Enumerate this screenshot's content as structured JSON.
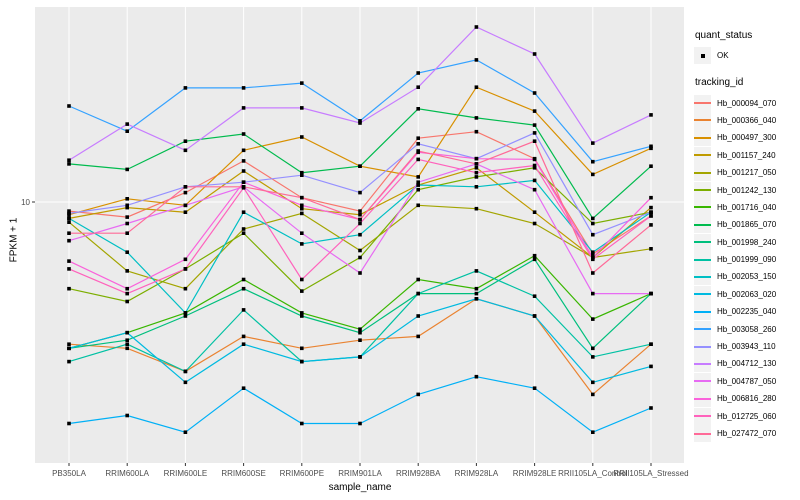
{
  "chart_data": {
    "type": "line",
    "title": "",
    "xlabel": "sample_name",
    "ylabel": "FPKM + 1",
    "y_scale": "log10",
    "panel_bg": "#EBEBEB",
    "grid_color": "#FFFFFF",
    "axis_text_color": "#4D4D4D",
    "marker": {
      "shape": "square",
      "color": "#000000"
    },
    "y_ticks": [
      {
        "label": "10",
        "value": 10
      }
    ],
    "categories": [
      "PB350LA",
      "RRIM600LA",
      "RRIM600LE",
      "RRIM600SE",
      "RRIM600PE",
      "RRIM901LA",
      "RRIM928BA",
      "RRIM928LA",
      "RRIM928LE",
      "RRII105LA_Control",
      "RRII105LA_Stressed"
    ],
    "legend": {
      "quant_status_title": "quant_status",
      "quant_status_items": [
        {
          "label": "OK"
        }
      ],
      "tracking_id_title": "tracking_id"
    },
    "series": [
      {
        "name": "Hb_000094_070",
        "color": "#F8766D",
        "values": [
          9.2,
          8.7,
          10.9,
          14.6,
          10.4,
          9.2,
          18.0,
          19.1,
          14.9,
          6.2,
          8.8
        ]
      },
      {
        "name": "Hb_000366_040",
        "color": "#EA8331",
        "values": [
          2.7,
          2.6,
          2.1,
          2.9,
          2.6,
          2.8,
          2.9,
          4.1,
          3.5,
          1.7,
          2.7
        ]
      },
      {
        "name": "Hb_000497_300",
        "color": "#D89000",
        "values": [
          8.9,
          10.3,
          9.7,
          16.1,
          18.2,
          13.9,
          12.6,
          28.8,
          23.1,
          12.9,
          16.4
        ]
      },
      {
        "name": "Hb_001157_240",
        "color": "#C09B00",
        "values": [
          8.6,
          9.5,
          9.1,
          13.3,
          9.4,
          8.9,
          11.7,
          13.7,
          9.1,
          6.0,
          9.5
        ]
      },
      {
        "name": "Hb_001217_050",
        "color": "#A3A500",
        "values": [
          8.3,
          5.3,
          4.5,
          7.8,
          9.0,
          6.4,
          9.7,
          9.4,
          8.2,
          6.0,
          6.5
        ]
      },
      {
        "name": "Hb_001242_130",
        "color": "#7CAE00",
        "values": [
          4.5,
          4.0,
          5.4,
          7.5,
          4.4,
          6.0,
          11.2,
          12.6,
          13.7,
          8.2,
          9.1
        ]
      },
      {
        "name": "Hb_001716_040",
        "color": "#39B600",
        "values": [
          2.6,
          3.0,
          3.6,
          4.9,
          3.6,
          3.1,
          4.9,
          4.5,
          6.1,
          3.4,
          4.3
        ]
      },
      {
        "name": "Hb_001865_070",
        "color": "#00BB4E",
        "values": [
          14.2,
          13.5,
          17.5,
          18.7,
          13.1,
          13.9,
          23.6,
          21.7,
          20.3,
          8.6,
          13.9
        ]
      },
      {
        "name": "Hb_001998_240",
        "color": "#00BF7D",
        "values": [
          2.6,
          2.8,
          3.5,
          4.5,
          3.5,
          3.0,
          4.3,
          4.3,
          5.9,
          2.6,
          4.3
        ]
      },
      {
        "name": "Hb_001999_090",
        "color": "#00C1A3",
        "values": [
          2.3,
          2.7,
          2.1,
          3.7,
          2.3,
          2.4,
          4.3,
          5.3,
          4.2,
          2.4,
          2.7
        ]
      },
      {
        "name": "Hb_002053_150",
        "color": "#00BFC4",
        "values": [
          8.6,
          6.3,
          3.6,
          9.1,
          6.8,
          7.4,
          11.7,
          11.5,
          12.2,
          6.3,
          9.1
        ]
      },
      {
        "name": "Hb_002063_020",
        "color": "#00BAE0",
        "values": [
          2.6,
          3.0,
          1.9,
          2.7,
          2.3,
          2.4,
          3.5,
          4.1,
          3.5,
          1.9,
          2.2
        ]
      },
      {
        "name": "Hb_002235_040",
        "color": "#00B0F6",
        "values": [
          1.3,
          1.4,
          1.2,
          1.8,
          1.3,
          1.3,
          1.7,
          2.0,
          1.8,
          1.2,
          1.5
        ]
      },
      {
        "name": "Hb_003058_260",
        "color": "#35A2FF",
        "values": [
          24.2,
          19.2,
          28.6,
          28.6,
          29.9,
          21.1,
          32.8,
          37.0,
          27.3,
          14.5,
          16.7
        ]
      },
      {
        "name": "Hb_003943_110",
        "color": "#9590FF",
        "values": [
          9.0,
          9.7,
          11.5,
          12.0,
          12.8,
          10.9,
          17.1,
          14.9,
          18.9,
          7.4,
          9.1
        ]
      },
      {
        "name": "Hb_004712_130",
        "color": "#C77CFF",
        "values": [
          14.7,
          20.5,
          16.1,
          23.8,
          23.8,
          20.7,
          28.8,
          50.1,
          39.1,
          17.2,
          22.3
        ]
      },
      {
        "name": "Hb_004787_050",
        "color": "#E76BF3",
        "values": [
          7.0,
          8.2,
          9.7,
          11.5,
          7.5,
          5.2,
          12.0,
          14.2,
          11.2,
          4.3,
          4.3
        ]
      },
      {
        "name": "Hb_006816_280",
        "color": "#FA62DB",
        "values": [
          5.8,
          4.5,
          5.9,
          12.0,
          9.7,
          8.5,
          15.8,
          14.9,
          14.8,
          6.0,
          10.4
        ]
      },
      {
        "name": "Hb_012725_060",
        "color": "#FF62BC",
        "values": [
          5.4,
          4.3,
          5.4,
          11.4,
          4.9,
          8.2,
          14.8,
          13.1,
          14.0,
          5.9,
          8.8
        ]
      },
      {
        "name": "Hb_027472_070",
        "color": "#FF6A98",
        "values": [
          7.5,
          7.5,
          11.5,
          11.5,
          10.4,
          8.5,
          16.0,
          14.2,
          17.5,
          5.2,
          8.1
        ]
      }
    ]
  }
}
